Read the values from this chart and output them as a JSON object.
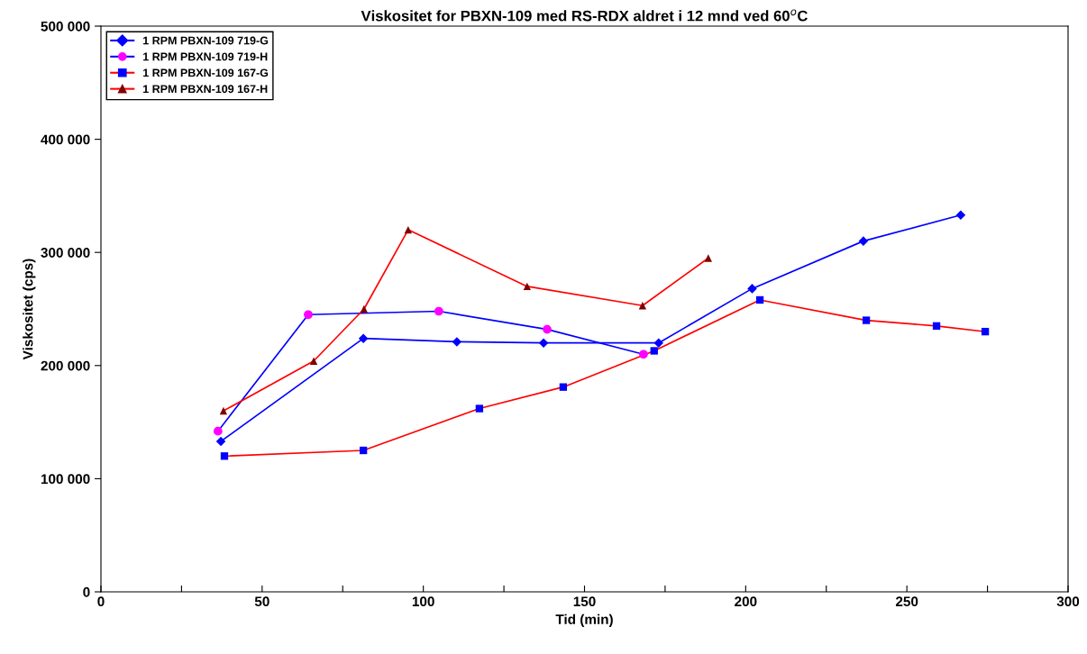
{
  "chart_data": {
    "type": "line",
    "title": "Viskositet for PBXN-109 med RS-RDX aldret i 12 mnd ved 60$^{o}$C",
    "xlabel": "Tid (min)",
    "ylabel": "Viskositet (cps)",
    "xlim": [
      0,
      300
    ],
    "ylim": [
      0,
      500000
    ],
    "xticks": [
      0,
      {
        "value": 25,
        "label": null
      },
      50,
      {
        "value": 75,
        "label": null
      },
      100,
      {
        "value": 125,
        "label": null
      },
      150,
      {
        "value": 175,
        "label": null
      },
      200,
      {
        "value": 225,
        "label": null
      },
      250,
      {
        "value": 275,
        "label": null
      },
      300
    ],
    "yticks": [
      {
        "value": 0,
        "label": "0"
      },
      {
        "value": 100000,
        "label": "100 000"
      },
      {
        "value": 200000,
        "label": "200 000"
      },
      {
        "value": 300000,
        "label": "300 000"
      },
      {
        "value": 400000,
        "label": "400 000"
      },
      {
        "value": 500000,
        "label": "500 000"
      }
    ],
    "grid": false,
    "legend": "top left",
    "series": [
      {
        "name": "1 RPM PBXN-109 719-G",
        "color": "#0000ff",
        "marker": "diamond",
        "x": [
          37.2,
          81.4,
          110.4,
          137.3,
          173,
          202,
          236.5,
          266.7
        ],
        "values": [
          133000,
          224000,
          221000,
          220000,
          220000,
          268000,
          310000,
          333000
        ],
        "colors": [
          "#0000ff",
          "#0000ff",
          "#0000ff",
          "#0000ff",
          "#0000ff",
          "#0000ff",
          "#0000ff",
          "#0000ff"
        ]
      },
      {
        "name": "1 RPM PBXN-109 719-H",
        "color": "#0000ff",
        "marker": "circle",
        "x": [
          36.3,
          64.3,
          104.8,
          138.4,
          168.3
        ],
        "values": [
          142000,
          245000,
          248000,
          232000,
          210000
        ],
        "colors": [
          "#ff00ff",
          "#ff00ff",
          "#ff00ff",
          "#ff00ff",
          "#ff00ff"
        ]
      },
      {
        "name": "1 RPM PBXN-109 167-G",
        "color": "#ff0000",
        "marker": "square",
        "x": [
          38.3,
          81.4,
          117.4,
          143.4,
          171.6,
          204.4,
          237.4,
          259.2,
          274.3
        ],
        "values": [
          120000,
          125000,
          162000,
          181000,
          213000,
          258000,
          240000,
          235000,
          230000
        ],
        "colors": [
          "#0000ff",
          "#0000ff",
          "#0000ff",
          "#0000ff",
          "#0000ff",
          "#0000ff",
          "#0000ff",
          "#0000ff",
          "#0000ff"
        ]
      },
      {
        "name": "1 RPM PBXN-109 167-H",
        "color": "#ff0000",
        "marker": "triangle",
        "x": [
          38,
          66,
          81.6,
          95.3,
          132.2,
          168,
          188.4
        ],
        "values": [
          160000,
          204000,
          250000,
          320000,
          270000,
          253000,
          295000
        ],
        "colors": [
          "#800000",
          "#800000",
          "#800000",
          "#800000",
          "#800000",
          "#800000",
          "#800000"
        ]
      }
    ]
  }
}
